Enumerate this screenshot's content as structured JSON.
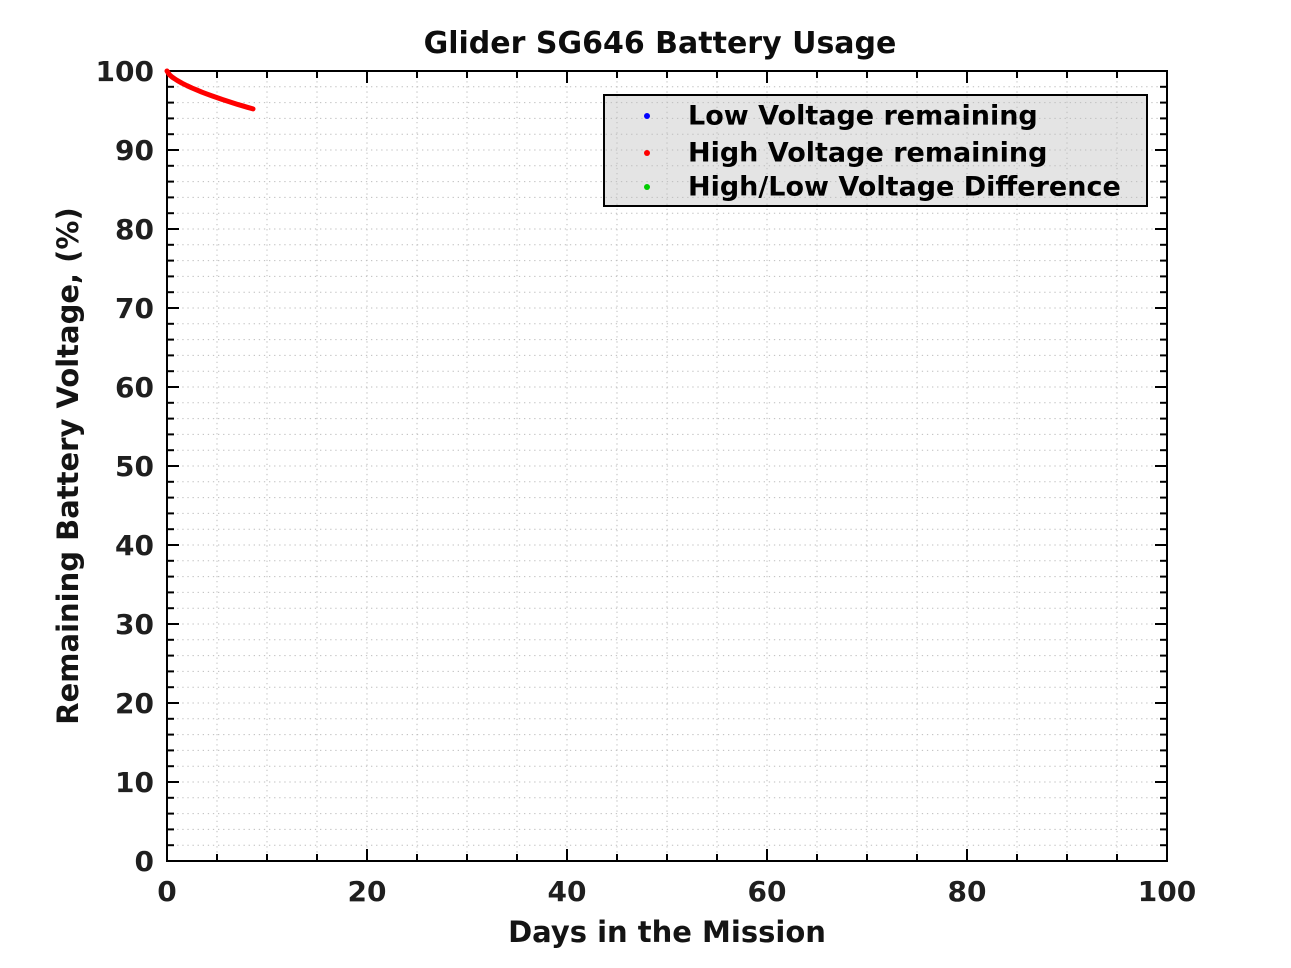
{
  "figure": {
    "background": "#ffffff"
  },
  "colors": {
    "axis": "#000000",
    "tick_text": "#1f1f1f",
    "grid": "#bdbdbd"
  },
  "chart_data": {
    "type": "scatter",
    "title": "Glider SG646 Battery Usage",
    "xlabel": "Days in the Mission",
    "ylabel": "Remaining Battery Voltage, (%)",
    "xlim": [
      0,
      100
    ],
    "ylim": [
      0,
      100
    ],
    "x_ticks": [
      0,
      20,
      40,
      60,
      80,
      100
    ],
    "y_ticks": [
      0,
      10,
      20,
      30,
      40,
      50,
      60,
      70,
      80,
      90,
      100
    ],
    "x_minor_tick_step": 5,
    "y_minor_tick_step": 2,
    "grid": "minor, dotted, both axes",
    "legend": {
      "position": "upper-right",
      "background": "#e4e4e4",
      "border": "#000000"
    },
    "series": [
      {
        "name": "Low Voltage remaining",
        "color": "#0000ff",
        "marker": "dot",
        "points": []
      },
      {
        "name": "High Voltage remaining",
        "color": "#ff0000",
        "marker": "dot",
        "points": [
          [
            0,
            100
          ],
          [
            0.25,
            99.52
          ],
          [
            0.5,
            99.24
          ],
          [
            0.75,
            99.02
          ],
          [
            1,
            98.82
          ],
          [
            1.5,
            98.46
          ],
          [
            2,
            98.14
          ],
          [
            2.5,
            97.85
          ],
          [
            3,
            97.58
          ],
          [
            3.5,
            97.32
          ],
          [
            4,
            97.08
          ],
          [
            4.5,
            96.85
          ],
          [
            5,
            96.63
          ],
          [
            5.5,
            96.41
          ],
          [
            6,
            96.2
          ],
          [
            6.5,
            96.0
          ],
          [
            7,
            95.8
          ],
          [
            7.5,
            95.61
          ],
          [
            8,
            95.42
          ],
          [
            8.6,
            95.2
          ]
        ]
      },
      {
        "name": "High/Low Voltage Difference",
        "color": "#00cc00",
        "marker": "dot",
        "points": []
      }
    ]
  }
}
